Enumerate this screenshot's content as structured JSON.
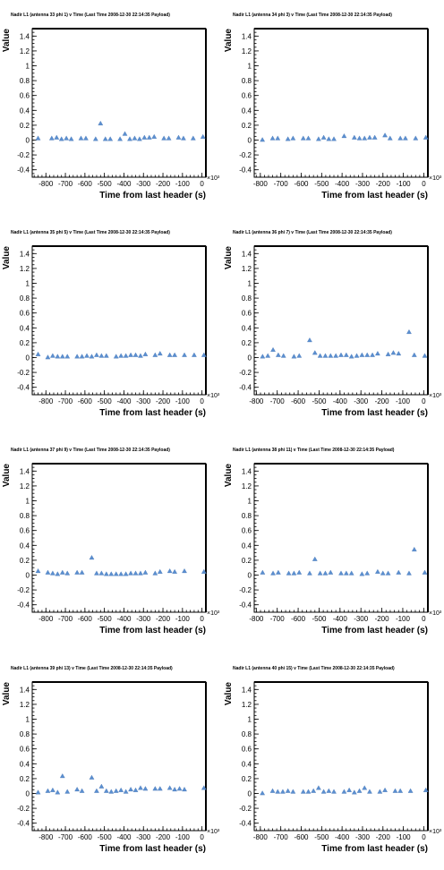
{
  "chart_data": [
    {
      "type": "scatter",
      "title": "Nadir L1 (antenna 33 phi 1) v Time (Last Time 2008-12-30 22:14:35 Payload)",
      "xlabel": "Time from last header (s)",
      "ylabel": "Value",
      "x_multiplier": "×10³",
      "xlim": [
        -870,
        20
      ],
      "ylim": [
        -0.5,
        1.5
      ],
      "xticks": [
        -800,
        -700,
        -600,
        -500,
        -400,
        -300,
        -200,
        -100,
        0
      ],
      "yticks": [
        -0.4,
        -0.2,
        0,
        0.2,
        0.4,
        0.6,
        0.8,
        1,
        1.2,
        1.4
      ],
      "x": [
        -840,
        -770,
        -745,
        -720,
        -695,
        -670,
        -620,
        -595,
        -545,
        -520,
        -495,
        -470,
        -420,
        -395,
        -370,
        -345,
        -320,
        -295,
        -270,
        -245,
        -195,
        -170,
        -120,
        -95,
        -45,
        5
      ],
      "y": [
        0.02,
        0.02,
        0.03,
        0.01,
        0.02,
        0.01,
        0.02,
        0.02,
        0.01,
        0.22,
        0.01,
        0.01,
        0.01,
        0.08,
        0.01,
        0.02,
        0.01,
        0.03,
        0.03,
        0.04,
        0.02,
        0.02,
        0.03,
        0.02,
        0.02,
        0.04
      ]
    },
    {
      "type": "scatter",
      "title": "Nadir L1 (antenna 34 phi 3) v Time (Last Time 2008-12-30 22:14:35 Payload)",
      "xlabel": "Time from last header (s)",
      "ylabel": "Value",
      "x_multiplier": "×10³",
      "xlim": [
        -830,
        20
      ],
      "ylim": [
        -0.5,
        1.5
      ],
      "xticks": [
        -800,
        -700,
        -600,
        -500,
        -400,
        -300,
        -200,
        -100,
        0
      ],
      "yticks": [
        -0.4,
        -0.2,
        0,
        0.2,
        0.4,
        0.6,
        0.8,
        1,
        1.2,
        1.4
      ],
      "x": [
        -790,
        -740,
        -715,
        -665,
        -640,
        -590,
        -565,
        -515,
        -490,
        -465,
        -440,
        -390,
        -340,
        -315,
        -290,
        -265,
        -240,
        -190,
        -165,
        -115,
        -90,
        -40,
        10
      ],
      "y": [
        0.0,
        0.02,
        0.02,
        0.01,
        0.02,
        0.02,
        0.02,
        0.01,
        0.03,
        0.01,
        0.01,
        0.05,
        0.03,
        0.02,
        0.02,
        0.03,
        0.03,
        0.06,
        0.02,
        0.02,
        0.02,
        0.02,
        0.03
      ]
    },
    {
      "type": "scatter",
      "title": "Nadir L1 (antenna 35 phi 5) v Time (Last Time 2008-12-30 22:14:35 Payload)",
      "xlabel": "Time from last header (s)",
      "ylabel": "Value",
      "x_multiplier": "×10³",
      "xlim": [
        -870,
        20
      ],
      "ylim": [
        -0.5,
        1.5
      ],
      "xticks": [
        -800,
        -700,
        -600,
        -500,
        -400,
        -300,
        -200,
        -100,
        0
      ],
      "yticks": [
        -0.4,
        -0.2,
        0,
        0.2,
        0.4,
        0.6,
        0.8,
        1,
        1.2,
        1.4
      ],
      "x": [
        -840,
        -790,
        -765,
        -740,
        -715,
        -690,
        -640,
        -615,
        -590,
        -565,
        -540,
        -515,
        -490,
        -440,
        -415,
        -390,
        -365,
        -340,
        -315,
        -290,
        -240,
        -215,
        -165,
        -140,
        -90,
        -40,
        10
      ],
      "y": [
        0.04,
        0.0,
        0.02,
        0.01,
        0.01,
        0.01,
        0.01,
        0.01,
        0.02,
        0.01,
        0.03,
        0.02,
        0.02,
        0.01,
        0.02,
        0.02,
        0.03,
        0.03,
        0.02,
        0.04,
        0.03,
        0.05,
        0.03,
        0.03,
        0.03,
        0.03,
        0.03
      ]
    },
    {
      "type": "scatter",
      "title": "Nadir L1 (antenna 36 phi 7) v Time (Last Time 2008-12-30 22:14:35 Payload)",
      "xlabel": "Time from last header (s)",
      "ylabel": "Value",
      "x_multiplier": "×10³",
      "xlim": [
        -810,
        20
      ],
      "ylim": [
        -0.5,
        1.5
      ],
      "xticks": [
        -800,
        -700,
        -600,
        -500,
        -400,
        -300,
        -200,
        -100,
        0
      ],
      "yticks": [
        -0.4,
        -0.2,
        0,
        0.2,
        0.4,
        0.6,
        0.8,
        1,
        1.2,
        1.4
      ],
      "x": [
        -770,
        -745,
        -720,
        -695,
        -670,
        -620,
        -595,
        -545,
        -520,
        -495,
        -470,
        -445,
        -420,
        -395,
        -370,
        -345,
        -320,
        -295,
        -270,
        -245,
        -220,
        -170,
        -145,
        -120,
        -70,
        -45,
        5
      ],
      "y": [
        0.01,
        0.02,
        0.1,
        0.03,
        0.02,
        0.01,
        0.02,
        0.23,
        0.06,
        0.02,
        0.02,
        0.02,
        0.02,
        0.03,
        0.03,
        0.01,
        0.02,
        0.03,
        0.03,
        0.03,
        0.05,
        0.04,
        0.06,
        0.05,
        0.34,
        0.03,
        0.02
      ]
    },
    {
      "type": "scatter",
      "title": "Nadir L1 (antenna 37 phi 9) v Time (Last Time 2008-12-30 22:14:35 Payload)",
      "xlabel": "Time from last header (s)",
      "ylabel": "Value",
      "x_multiplier": "×10³",
      "xlim": [
        -870,
        20
      ],
      "ylim": [
        -0.5,
        1.5
      ],
      "xticks": [
        -800,
        -700,
        -600,
        -500,
        -400,
        -300,
        -200,
        -100,
        0
      ],
      "yticks": [
        -0.4,
        -0.2,
        0,
        0.2,
        0.4,
        0.6,
        0.8,
        1,
        1.2,
        1.4
      ],
      "x": [
        -840,
        -790,
        -765,
        -740,
        -715,
        -690,
        -640,
        -615,
        -565,
        -540,
        -515,
        -490,
        -465,
        -440,
        -415,
        -390,
        -365,
        -340,
        -315,
        -290,
        -240,
        -215,
        -165,
        -140,
        -90,
        10
      ],
      "y": [
        0.05,
        0.03,
        0.02,
        0.01,
        0.03,
        0.02,
        0.03,
        0.03,
        0.23,
        0.02,
        0.02,
        0.01,
        0.01,
        0.01,
        0.01,
        0.01,
        0.02,
        0.02,
        0.02,
        0.03,
        0.02,
        0.04,
        0.05,
        0.04,
        0.05,
        0.04
      ]
    },
    {
      "type": "scatter",
      "title": "Nadir L1 (antenna 38 phi 11) v Time (Last Time 2008-12-30 22:14:35 Payload)",
      "xlabel": "Time from last header (s)",
      "ylabel": "Value",
      "x_multiplier": "×10³",
      "xlim": [
        -810,
        20
      ],
      "ylim": [
        -0.5,
        1.5
      ],
      "xticks": [
        -800,
        -700,
        -600,
        -500,
        -400,
        -300,
        -200,
        -100,
        0
      ],
      "yticks": [
        -0.4,
        -0.2,
        0,
        0.2,
        0.4,
        0.6,
        0.8,
        1,
        1.2,
        1.4
      ],
      "x": [
        -770,
        -720,
        -695,
        -645,
        -620,
        -595,
        -545,
        -520,
        -495,
        -470,
        -445,
        -395,
        -370,
        -345,
        -295,
        -270,
        -220,
        -195,
        -170,
        -120,
        -70,
        -45,
        5
      ],
      "y": [
        0.03,
        0.02,
        0.03,
        0.02,
        0.02,
        0.03,
        0.02,
        0.21,
        0.02,
        0.02,
        0.03,
        0.02,
        0.02,
        0.02,
        0.01,
        0.02,
        0.04,
        0.02,
        0.02,
        0.03,
        0.02,
        0.34,
        0.03
      ]
    },
    {
      "type": "scatter",
      "title": "Nadir L1 (antenna 39 phi 13) v Time (Last Time 2008-12-30 22:14:35 Payload)",
      "xlabel": "Time from last header (s)",
      "ylabel": "Value",
      "x_multiplier": "×10³",
      "xlim": [
        -870,
        20
      ],
      "ylim": [
        -0.5,
        1.5
      ],
      "xticks": [
        -800,
        -700,
        -600,
        -500,
        -400,
        -300,
        -200,
        -100,
        0
      ],
      "yticks": [
        -0.4,
        -0.2,
        0,
        0.2,
        0.4,
        0.6,
        0.8,
        1,
        1.2,
        1.4
      ],
      "x": [
        -840,
        -790,
        -765,
        -740,
        -715,
        -690,
        -640,
        -615,
        -565,
        -540,
        -515,
        -490,
        -465,
        -440,
        -415,
        -390,
        -365,
        -340,
        -315,
        -290,
        -240,
        -215,
        -165,
        -140,
        -115,
        -90,
        10
      ],
      "y": [
        0.01,
        0.03,
        0.04,
        0.01,
        0.23,
        0.02,
        0.05,
        0.03,
        0.21,
        0.03,
        0.09,
        0.03,
        0.02,
        0.03,
        0.04,
        0.02,
        0.05,
        0.04,
        0.07,
        0.06,
        0.06,
        0.06,
        0.07,
        0.05,
        0.06,
        0.05,
        0.07
      ]
    },
    {
      "type": "scatter",
      "title": "Nadir L1 (antenna 40 phi 15) v Time (Last Time 2008-12-30 22:14:35 Payload)",
      "xlabel": "Time from last header (s)",
      "ylabel": "Value",
      "x_multiplier": "×10³",
      "xlim": [
        -830,
        20
      ],
      "ylim": [
        -0.5,
        1.5
      ],
      "xticks": [
        -800,
        -700,
        -600,
        -500,
        -400,
        -300,
        -200,
        -100,
        0
      ],
      "yticks": [
        -0.4,
        -0.2,
        0,
        0.2,
        0.4,
        0.6,
        0.8,
        1,
        1.2,
        1.4
      ],
      "x": [
        -790,
        -740,
        -715,
        -690,
        -665,
        -640,
        -590,
        -565,
        -540,
        -515,
        -490,
        -465,
        -440,
        -390,
        -365,
        -340,
        -315,
        -290,
        -265,
        -215,
        -190,
        -140,
        -115,
        -65,
        10
      ],
      "y": [
        0.0,
        0.03,
        0.02,
        0.02,
        0.03,
        0.02,
        0.02,
        0.02,
        0.03,
        0.07,
        0.02,
        0.03,
        0.02,
        0.02,
        0.04,
        0.01,
        0.03,
        0.07,
        0.02,
        0.02,
        0.04,
        0.03,
        0.03,
        0.03,
        0.04
      ]
    }
  ]
}
